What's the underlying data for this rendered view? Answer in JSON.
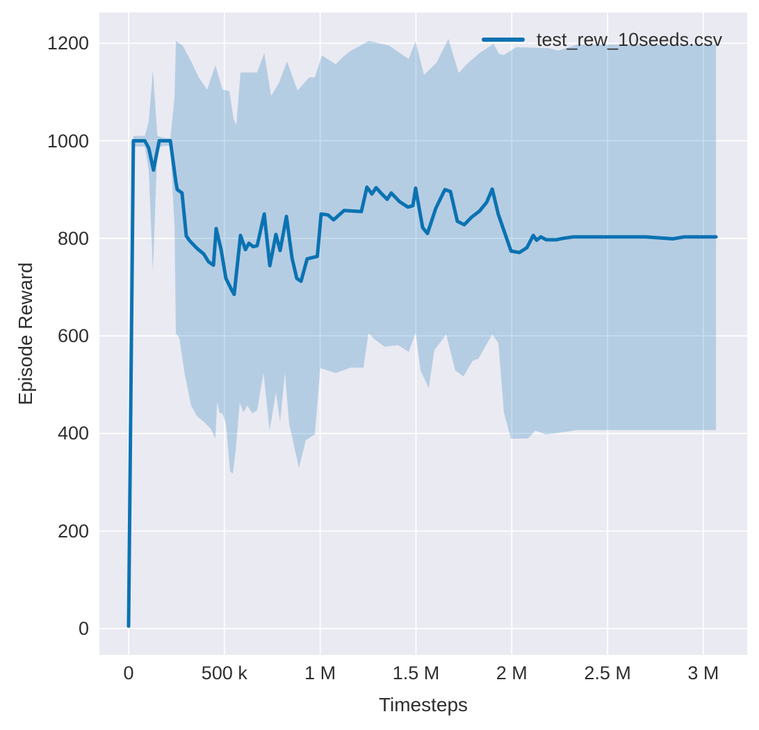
{
  "figure": {
    "facecolor": "#ffffff",
    "axes_facecolor": "#eaeaf2",
    "grid_color": "#ffffff",
    "text_color": "#2f2f2f",
    "line_color": "#0b72b2",
    "band_opacity": 0.24
  },
  "chart_data": {
    "type": "line",
    "title": "",
    "xlabel": "Timesteps",
    "ylabel": "Episode Reward",
    "grid": true,
    "legend": {
      "position": "upper right",
      "entries": [
        {
          "label": "test_rew_10seeds.csv",
          "color": "#0b72b2"
        }
      ]
    },
    "xlim": [
      -152400,
      3228800
    ],
    "ylim": [
      -54,
      1263
    ],
    "xticks": [
      {
        "v": 0,
        "label": "0"
      },
      {
        "v": 500000,
        "label": "500 k"
      },
      {
        "v": 1000000,
        "label": "1 M"
      },
      {
        "v": 1500000,
        "label": "1.5 M"
      },
      {
        "v": 2000000,
        "label": "2 M"
      },
      {
        "v": 2500000,
        "label": "2.5 M"
      },
      {
        "v": 3000000,
        "label": "3 M"
      }
    ],
    "yticks": [
      {
        "v": 0,
        "label": "0"
      },
      {
        "v": 200,
        "label": "200"
      },
      {
        "v": 400,
        "label": "400"
      },
      {
        "v": 600,
        "label": "600"
      },
      {
        "v": 800,
        "label": "800"
      },
      {
        "v": 1000,
        "label": "1000"
      },
      {
        "v": 1200,
        "label": "1200"
      }
    ],
    "series": [
      {
        "name": "test_rew_10seeds.csv",
        "color": "#0b72b2",
        "mean": [
          [
            0,
            5
          ],
          [
            25000,
            1000
          ],
          [
            85000,
            1000
          ],
          [
            105000,
            985
          ],
          [
            130000,
            940
          ],
          [
            160000,
            1000
          ],
          [
            218000,
            1000
          ],
          [
            247000,
            915
          ],
          [
            254000,
            900
          ],
          [
            279000,
            893
          ],
          [
            301000,
            805
          ],
          [
            319000,
            795
          ],
          [
            356000,
            780
          ],
          [
            392000,
            768
          ],
          [
            417000,
            752
          ],
          [
            443000,
            745
          ],
          [
            457000,
            820
          ],
          [
            483000,
            777
          ],
          [
            508000,
            718
          ],
          [
            537000,
            695
          ],
          [
            551000,
            685
          ],
          [
            584000,
            806
          ],
          [
            610000,
            777
          ],
          [
            628000,
            790
          ],
          [
            650000,
            783
          ],
          [
            671000,
            785
          ],
          [
            708000,
            850
          ],
          [
            737000,
            744
          ],
          [
            769000,
            808
          ],
          [
            791000,
            775
          ],
          [
            824000,
            845
          ],
          [
            853000,
            760
          ],
          [
            878000,
            718
          ],
          [
            900000,
            712
          ],
          [
            932000,
            758
          ],
          [
            985000,
            763
          ],
          [
            1005000,
            850
          ],
          [
            1041000,
            848
          ],
          [
            1070000,
            838
          ],
          [
            1125000,
            857
          ],
          [
            1215000,
            855
          ],
          [
            1244000,
            905
          ],
          [
            1270000,
            891
          ],
          [
            1292000,
            904
          ],
          [
            1317000,
            893
          ],
          [
            1350000,
            880
          ],
          [
            1371000,
            893
          ],
          [
            1415000,
            875
          ],
          [
            1458000,
            864
          ],
          [
            1484000,
            867
          ],
          [
            1498000,
            903
          ],
          [
            1535000,
            822
          ],
          [
            1560000,
            810
          ],
          [
            1604000,
            862
          ],
          [
            1651000,
            900
          ],
          [
            1680000,
            896
          ],
          [
            1716000,
            835
          ],
          [
            1752000,
            828
          ],
          [
            1789000,
            843
          ],
          [
            1832000,
            856
          ],
          [
            1869000,
            874
          ],
          [
            1898000,
            901
          ],
          [
            1930000,
            849
          ],
          [
            1996000,
            774
          ],
          [
            2040000,
            771
          ],
          [
            2079000,
            781
          ],
          [
            2112000,
            806
          ],
          [
            2130000,
            796
          ],
          [
            2152000,
            803
          ],
          [
            2180000,
            797
          ],
          [
            2232000,
            797
          ],
          [
            2268000,
            800
          ],
          [
            2322000,
            803
          ],
          [
            2500000,
            803
          ],
          [
            2700000,
            803
          ],
          [
            2841000,
            799
          ],
          [
            2900000,
            803
          ],
          [
            3066000,
            803
          ]
        ],
        "band_upper": [
          [
            0,
            8
          ],
          [
            25000,
            1010
          ],
          [
            85000,
            1010
          ],
          [
            105000,
            1040
          ],
          [
            127000,
            1145
          ],
          [
            150000,
            1010
          ],
          [
            185000,
            1006
          ],
          [
            218000,
            1005
          ],
          [
            240000,
            1090
          ],
          [
            247000,
            1205
          ],
          [
            283000,
            1195
          ],
          [
            330000,
            1160
          ],
          [
            366000,
            1130
          ],
          [
            410000,
            1105
          ],
          [
            453000,
            1155
          ],
          [
            490000,
            1105
          ],
          [
            526000,
            1102
          ],
          [
            548000,
            1045
          ],
          [
            562000,
            1032
          ],
          [
            584000,
            1140
          ],
          [
            671000,
            1140
          ],
          [
            708000,
            1180
          ],
          [
            744000,
            1092
          ],
          [
            784000,
            1118
          ],
          [
            827000,
            1163
          ],
          [
            882000,
            1103
          ],
          [
            943000,
            1130
          ],
          [
            972000,
            1130
          ],
          [
            1009000,
            1175
          ],
          [
            1081000,
            1157
          ],
          [
            1117000,
            1171
          ],
          [
            1154000,
            1183
          ],
          [
            1255000,
            1205
          ],
          [
            1361000,
            1195
          ],
          [
            1397000,
            1185
          ],
          [
            1462000,
            1168
          ],
          [
            1498000,
            1204
          ],
          [
            1542000,
            1135
          ],
          [
            1607000,
            1160
          ],
          [
            1669000,
            1209
          ],
          [
            1723000,
            1139
          ],
          [
            1770000,
            1159
          ],
          [
            1832000,
            1180
          ],
          [
            1905000,
            1199
          ],
          [
            1934000,
            1178
          ],
          [
            1959000,
            1176
          ],
          [
            2024000,
            1192
          ],
          [
            2195000,
            1190
          ],
          [
            2242000,
            1185
          ],
          [
            2340000,
            1197
          ],
          [
            3066000,
            1197
          ]
        ],
        "band_lower": [
          [
            0,
            3
          ],
          [
            25000,
            988
          ],
          [
            85000,
            988
          ],
          [
            105000,
            940
          ],
          [
            127000,
            732
          ],
          [
            150000,
            985
          ],
          [
            185000,
            990
          ],
          [
            218000,
            990
          ],
          [
            240000,
            820
          ],
          [
            247000,
            605
          ],
          [
            265000,
            595
          ],
          [
            294000,
            520
          ],
          [
            327000,
            457
          ],
          [
            356000,
            436
          ],
          [
            392000,
            424
          ],
          [
            428000,
            410
          ],
          [
            453000,
            390
          ],
          [
            462000,
            465
          ],
          [
            475000,
            442
          ],
          [
            490000,
            441
          ],
          [
            508000,
            420
          ],
          [
            530000,
            322
          ],
          [
            544000,
            318
          ],
          [
            560000,
            370
          ],
          [
            580000,
            463
          ],
          [
            599000,
            443
          ],
          [
            620000,
            457
          ],
          [
            646000,
            441
          ],
          [
            671000,
            448
          ],
          [
            704000,
            524
          ],
          [
            736000,
            406
          ],
          [
            769000,
            484
          ],
          [
            791000,
            424
          ],
          [
            816000,
            524
          ],
          [
            838000,
            420
          ],
          [
            889000,
            329
          ],
          [
            925000,
            386
          ],
          [
            972000,
            398
          ],
          [
            1001000,
            534
          ],
          [
            1081000,
            524
          ],
          [
            1161000,
            535
          ],
          [
            1226000,
            535
          ],
          [
            1252000,
            605
          ],
          [
            1288000,
            592
          ],
          [
            1335000,
            578
          ],
          [
            1408000,
            581
          ],
          [
            1462000,
            567
          ],
          [
            1498000,
            606
          ],
          [
            1524000,
            529
          ],
          [
            1567000,
            493
          ],
          [
            1596000,
            571
          ],
          [
            1658000,
            603
          ],
          [
            1705000,
            529
          ],
          [
            1748000,
            517
          ],
          [
            1796000,
            549
          ],
          [
            1825000,
            553
          ],
          [
            1898000,
            603
          ],
          [
            1930000,
            586
          ],
          [
            1959000,
            443
          ],
          [
            1996000,
            389
          ],
          [
            2086000,
            390
          ],
          [
            2123000,
            406
          ],
          [
            2177000,
            398
          ],
          [
            2221000,
            400
          ],
          [
            2340000,
            407
          ],
          [
            3066000,
            407
          ]
        ]
      }
    ]
  }
}
